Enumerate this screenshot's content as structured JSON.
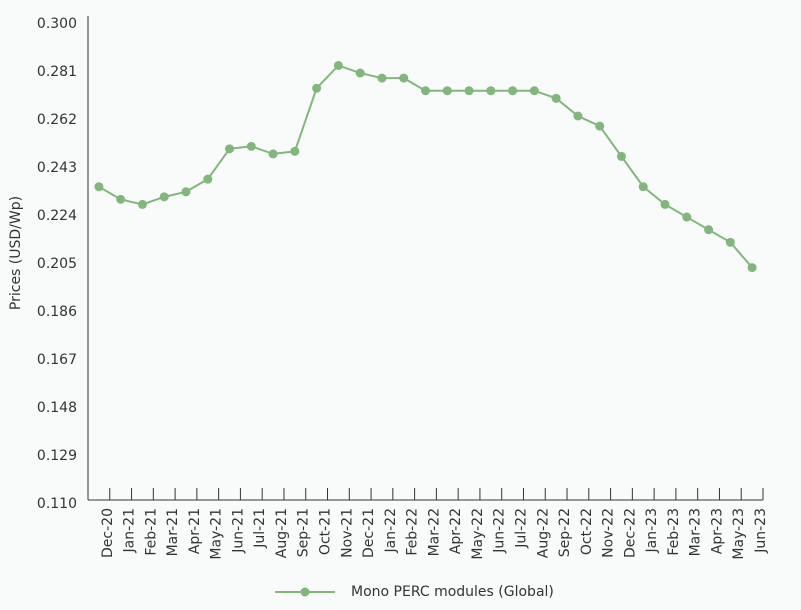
{
  "chart_data": {
    "type": "line",
    "categories": [
      "Dec-20",
      "Jan-21",
      "Feb-21",
      "Mar-21",
      "Apr-21",
      "May-21",
      "Jun-21",
      "Jul-21",
      "Aug-21",
      "Sep-21",
      "Oct-21",
      "Nov-21",
      "Dec-21",
      "Jan-22",
      "Feb-22",
      "Mar-22",
      "Apr-22",
      "May-22",
      "Jun-22",
      "Jul-22",
      "Aug-22",
      "Sep-22",
      "Oct-22",
      "Nov-22",
      "Dec-22",
      "Jan-23",
      "Feb-23",
      "Mar-23",
      "Apr-23",
      "May-23",
      "Jun-23"
    ],
    "series": [
      {
        "name": "Mono PERC modules (Global)",
        "color": "#82b67d",
        "values": [
          0.234,
          0.229,
          0.227,
          0.23,
          0.232,
          0.237,
          0.249,
          0.25,
          0.247,
          0.248,
          0.273,
          0.282,
          0.279,
          0.277,
          0.277,
          0.272,
          0.272,
          0.272,
          0.272,
          0.272,
          0.272,
          0.269,
          0.262,
          0.258,
          0.246,
          0.234,
          0.227,
          0.222,
          0.217,
          0.212,
          0.202
        ]
      }
    ],
    "y_label": "Prices (USD/Wp)",
    "ylim": [
      0.11,
      0.3
    ],
    "yticks": [
      {
        "value": 0.11,
        "label": "0.110"
      },
      0.129,
      0.148,
      0.167,
      0.186,
      0.205,
      0.224,
      0.243,
      0.262,
      0.281,
      {
        "value": 0.3,
        "label": "0.300"
      }
    ],
    "grid": false,
    "legend": "bottom"
  }
}
